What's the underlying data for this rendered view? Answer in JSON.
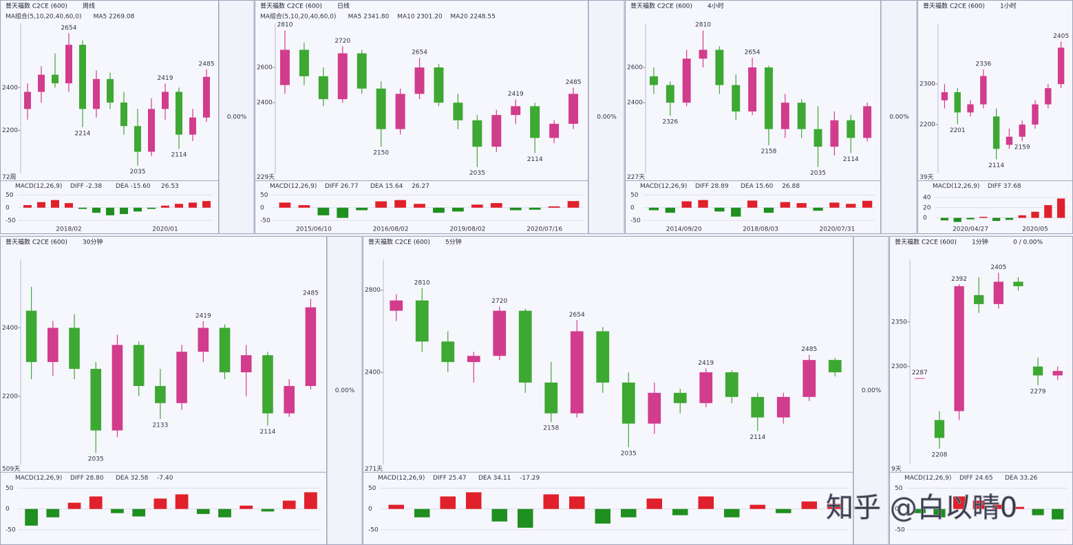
{
  "colors": {
    "up": "#d23c8c",
    "down": "#3da832",
    "high": "#c0207a",
    "low": "#2d8f2d",
    "macd_up": "#e0202a",
    "macd_down": "#1f8f1f"
  },
  "watermark": "知乎 @白以晴0",
  "panels": [
    {
      "title": "普天福数 C2CE (600)",
      "period": "周线",
      "ma": [
        "MA组合(5,10,20,40,60,0)",
        "MA5 2269.08"
      ],
      "count": "72周",
      "change": "0.00%",
      "ylim": [
        2000,
        2700
      ],
      "yticks": [
        2200,
        2400
      ],
      "candles": [
        [
          2300,
          2420,
          2250,
          2380
        ],
        [
          2380,
          2500,
          2330,
          2460
        ],
        [
          2460,
          2560,
          2400,
          2420
        ],
        [
          2420,
          2654,
          2380,
          2600
        ],
        [
          2600,
          2620,
          2214,
          2300
        ],
        [
          2300,
          2480,
          2260,
          2440
        ],
        [
          2440,
          2470,
          2300,
          2330
        ],
        [
          2330,
          2380,
          2180,
          2220
        ],
        [
          2220,
          2300,
          2035,
          2100
        ],
        [
          2100,
          2350,
          2080,
          2300
        ],
        [
          2300,
          2419,
          2250,
          2380
        ],
        [
          2380,
          2400,
          2114,
          2180
        ],
        [
          2180,
          2300,
          2150,
          2260
        ],
        [
          2260,
          2485,
          2240,
          2450
        ]
      ],
      "highs": [
        2654,
        2419,
        2485
      ],
      "lows": [
        2214,
        2035,
        2114
      ],
      "macd_title": "MACD(12,26,9)",
      "macd_stats": [
        "DIFF -2.38",
        "DEA -15.60",
        "26.53"
      ],
      "macd_ylim": [
        -60,
        60
      ],
      "macd_yticks": [
        50,
        0,
        -50
      ],
      "macd": [
        10,
        22,
        30,
        18,
        -5,
        -20,
        -30,
        -25,
        -15,
        -5,
        8,
        15,
        20,
        26
      ],
      "dates": [
        "2018/02",
        "2020/01"
      ]
    },
    {
      "title": "普天福数 C2CE (600)",
      "period": "日线",
      "ma": [
        "MA组合(5,10,20,40,60,0)",
        "MA5 2341.80",
        "MA10 2301.20",
        "MA20 2248.55"
      ],
      "count": "229天",
      "change": "0.00%",
      "ylim": [
        2000,
        2850
      ],
      "yticks": [
        2400,
        2600
      ],
      "candles": [
        [
          2500,
          2810,
          2450,
          2700
        ],
        [
          2700,
          2740,
          2500,
          2550
        ],
        [
          2550,
          2600,
          2380,
          2420
        ],
        [
          2420,
          2720,
          2400,
          2680
        ],
        [
          2680,
          2700,
          2450,
          2480
        ],
        [
          2480,
          2520,
          2150,
          2250
        ],
        [
          2250,
          2480,
          2220,
          2450
        ],
        [
          2450,
          2654,
          2420,
          2600
        ],
        [
          2600,
          2620,
          2380,
          2400
        ],
        [
          2400,
          2450,
          2250,
          2300
        ],
        [
          2300,
          2330,
          2035,
          2150
        ],
        [
          2150,
          2360,
          2120,
          2330
        ],
        [
          2330,
          2419,
          2280,
          2380
        ],
        [
          2380,
          2400,
          2114,
          2200
        ],
        [
          2200,
          2300,
          2170,
          2280
        ],
        [
          2280,
          2485,
          2250,
          2450
        ]
      ],
      "highs": [
        2810,
        2720,
        2654,
        2419,
        2485
      ],
      "lows": [
        2150,
        2035,
        2114
      ],
      "macd_title": "MACD(12,26,9)",
      "macd_stats": [
        "DIFF 26.77",
        "DEA 15.64",
        "26.27"
      ],
      "macd_ylim": [
        -60,
        60
      ],
      "macd_yticks": [
        50,
        0,
        -50
      ],
      "macd": [
        20,
        10,
        -30,
        -40,
        -10,
        25,
        30,
        15,
        -20,
        -15,
        12,
        18,
        -10,
        -8,
        5,
        26
      ],
      "dates": [
        "2015/06/10",
        "2016/08/02",
        "2019/08/02",
        "2020/07/16"
      ]
    },
    {
      "title": "普天福数 C2CE (600)",
      "period": "4小时",
      "count": "227天",
      "change": "0.00%",
      "ylim": [
        2000,
        2850
      ],
      "yticks": [
        2400,
        2600
      ],
      "candles": [
        [
          2550,
          2600,
          2450,
          2500
        ],
        [
          2500,
          2520,
          2326,
          2400
        ],
        [
          2400,
          2700,
          2380,
          2650
        ],
        [
          2650,
          2810,
          2600,
          2700
        ],
        [
          2700,
          2720,
          2450,
          2500
        ],
        [
          2500,
          2560,
          2300,
          2350
        ],
        [
          2350,
          2654,
          2330,
          2600
        ],
        [
          2600,
          2610,
          2158,
          2250
        ],
        [
          2250,
          2450,
          2200,
          2400
        ],
        [
          2400,
          2420,
          2200,
          2250
        ],
        [
          2250,
          2380,
          2035,
          2150
        ],
        [
          2150,
          2350,
          2100,
          2300
        ],
        [
          2300,
          2330,
          2114,
          2200
        ],
        [
          2200,
          2400,
          2180,
          2380
        ]
      ],
      "highs": [
        2810,
        2654
      ],
      "lows": [
        2326,
        2158,
        2035,
        2114
      ],
      "macd_title": "MACD(12,26,9)",
      "macd_stats": [
        "DIFF 28.89",
        "DEA 15.60",
        "26.88"
      ],
      "macd_ylim": [
        -60,
        60
      ],
      "macd_yticks": [
        50,
        0,
        -50
      ],
      "macd": [
        -10,
        -20,
        25,
        30,
        -15,
        -35,
        28,
        -20,
        22,
        18,
        -12,
        20,
        15,
        27
      ],
      "dates": [
        "2014/09/20",
        "2018/08/03",
        "2020/07/31"
      ]
    },
    {
      "title": "普天福数 C2CE (600)",
      "period": "1小时",
      "count": "39天",
      "ylim": [
        2080,
        2450
      ],
      "yticks": [
        2200,
        2300
      ],
      "candles": [
        [
          2260,
          2300,
          2240,
          2280
        ],
        [
          2280,
          2290,
          2201,
          2230
        ],
        [
          2230,
          2260,
          2220,
          2250
        ],
        [
          2250,
          2336,
          2240,
          2320
        ],
        [
          2220,
          2240,
          2114,
          2140
        ],
        [
          2150,
          2190,
          2140,
          2170
        ],
        [
          2170,
          2210,
          2159,
          2200
        ],
        [
          2200,
          2260,
          2190,
          2250
        ],
        [
          2250,
          2300,
          2240,
          2290
        ],
        [
          2300,
          2405,
          2290,
          2390
        ]
      ],
      "highs": [
        2336,
        2405
      ],
      "lows": [
        2201,
        2114,
        2159
      ],
      "macd_title": "MACD(12,26,9)",
      "macd_stats": [
        "DIFF 37.68"
      ],
      "macd_ylim": [
        -10,
        50
      ],
      "macd_yticks": [
        40,
        20,
        0
      ],
      "macd": [
        -5,
        -8,
        -3,
        2,
        -6,
        -4,
        5,
        12,
        25,
        38
      ],
      "dates": [
        "2020/04/27",
        "2020/05"
      ]
    },
    {
      "title": "普天福数 C2CE (600)",
      "period": "30分钟",
      "count": "509天",
      "change": "0.00%",
      "ylim": [
        2000,
        2600
      ],
      "yticks": [
        2200,
        2400
      ],
      "candles": [
        [
          2450,
          2520,
          2250,
          2300
        ],
        [
          2300,
          2420,
          2260,
          2400
        ],
        [
          2400,
          2440,
          2250,
          2280
        ],
        [
          2280,
          2300,
          2035,
          2100
        ],
        [
          2100,
          2380,
          2080,
          2350
        ],
        [
          2350,
          2360,
          2200,
          2230
        ],
        [
          2230,
          2280,
          2133,
          2180
        ],
        [
          2180,
          2350,
          2160,
          2330
        ],
        [
          2330,
          2419,
          2300,
          2400
        ],
        [
          2400,
          2410,
          2250,
          2270
        ],
        [
          2270,
          2350,
          2200,
          2320
        ],
        [
          2320,
          2330,
          2114,
          2150
        ],
        [
          2150,
          2250,
          2140,
          2230
        ],
        [
          2230,
          2485,
          2220,
          2460
        ]
      ],
      "highs": [
        2419,
        2485
      ],
      "lows": [
        2035,
        2133,
        2114
      ],
      "macd_title": "MACD(12,26,9)",
      "macd_stats": [
        "DIFF 28.80",
        "DEA 32.58",
        "-7.40"
      ],
      "macd_ylim": [
        -60,
        60
      ],
      "macd_yticks": [
        50,
        0,
        -50
      ],
      "macd": [
        -40,
        -20,
        15,
        30,
        -10,
        -18,
        25,
        35,
        -12,
        -20,
        8,
        -6,
        20,
        40
      ],
      "dates": []
    },
    {
      "title": "普天福数 C2CE (600)",
      "period": "5分钟",
      "count": "271天",
      "change": "0.00%",
      "ylim": [
        1950,
        2950
      ],
      "yticks": [
        2400,
        2800
      ],
      "candles": [
        [
          2700,
          2780,
          2650,
          2750
        ],
        [
          2750,
          2810,
          2500,
          2550
        ],
        [
          2550,
          2600,
          2400,
          2450
        ],
        [
          2450,
          2500,
          2350,
          2480
        ],
        [
          2480,
          2720,
          2460,
          2700
        ],
        [
          2700,
          2710,
          2300,
          2350
        ],
        [
          2350,
          2450,
          2158,
          2200
        ],
        [
          2200,
          2654,
          2180,
          2600
        ],
        [
          2600,
          2620,
          2300,
          2350
        ],
        [
          2350,
          2400,
          2035,
          2150
        ],
        [
          2150,
          2350,
          2100,
          2300
        ],
        [
          2300,
          2320,
          2200,
          2250
        ],
        [
          2250,
          2419,
          2230,
          2400
        ],
        [
          2400,
          2410,
          2250,
          2280
        ],
        [
          2280,
          2300,
          2114,
          2180
        ],
        [
          2180,
          2300,
          2150,
          2280
        ],
        [
          2280,
          2485,
          2260,
          2460
        ],
        [
          2460,
          2470,
          2380,
          2400
        ]
      ],
      "highs": [
        2810,
        2720,
        2654,
        2419,
        2485
      ],
      "lows": [
        2158,
        2035,
        2114
      ],
      "macd_title": "MACD(12,26,9)",
      "macd_stats": [
        "DIFF 25.47",
        "DEA 34.11",
        "-17.29"
      ],
      "macd_ylim": [
        -60,
        60
      ],
      "macd_yticks": [
        50,
        0,
        -50
      ],
      "macd": [
        10,
        -20,
        30,
        40,
        -30,
        -45,
        35,
        30,
        -35,
        -20,
        25,
        -15,
        30,
        -20,
        10,
        -10,
        18,
        12
      ],
      "dates": []
    },
    {
      "title": "普天福数 C2CE (600)",
      "period": "1分钟",
      "change": "0 / 0.00%",
      "count": "9天",
      "ylim": [
        2190,
        2420
      ],
      "yticks": [
        2300,
        2350
      ],
      "candles": [
        [
          2287,
          2287,
          2287,
          2287
        ],
        [
          2240,
          2250,
          2208,
          2220
        ],
        [
          2250,
          2392,
          2240,
          2390
        ],
        [
          2380,
          2400,
          2360,
          2370
        ],
        [
          2370,
          2405,
          2365,
          2395
        ],
        [
          2395,
          2400,
          2385,
          2390
        ],
        [
          2300,
          2310,
          2279,
          2290
        ],
        [
          2290,
          2300,
          2285,
          2295
        ]
      ],
      "highs": [
        2287,
        2392,
        2405
      ],
      "lows": [
        2208,
        2279
      ],
      "macd_title": "MACD(12,26,9)",
      "macd_stats": [
        "DIFF 24.65",
        "DEA 33.26"
      ],
      "macd_ylim": [
        -60,
        60
      ],
      "macd_yticks": [
        50,
        0,
        -50
      ],
      "macd": [
        -10,
        -20,
        30,
        20,
        10,
        5,
        -15,
        -25
      ],
      "dates": []
    }
  ]
}
